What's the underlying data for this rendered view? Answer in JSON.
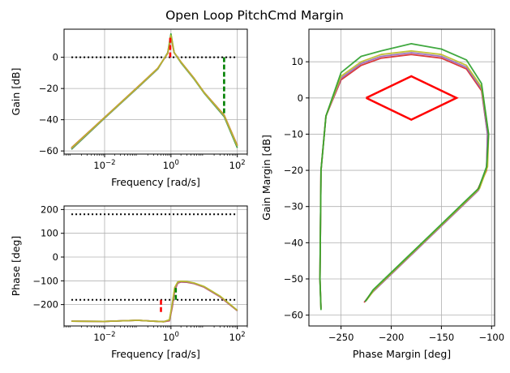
{
  "figure_title": "Open Loop PitchCmd Margin",
  "colors": {
    "c1": "#d62728",
    "c2": "#9467bd",
    "c3": "#2ca02c",
    "c4": "#bcbd22",
    "c5": "#e377c2",
    "ref_line": "#000000",
    "gain_margin_marker": "#008000",
    "phase_margin_marker": "#ff0000",
    "grid": "#b0b0b0"
  },
  "chart_data": [
    {
      "type": "line",
      "name": "gain",
      "xscale": "log",
      "xlabel": "Frequency [rad/s]",
      "ylabel": "Gain [dB]",
      "xlim": [
        0.0006,
        200
      ],
      "ylim": [
        -62,
        18
      ],
      "xticks": [
        {
          "v": 0.01,
          "base": "10",
          "exp": "−2"
        },
        {
          "v": 1,
          "base": "10",
          "exp": "0"
        },
        {
          "v": 100,
          "base": "10",
          "exp": "2"
        }
      ],
      "yticks": [
        -60,
        -40,
        -20,
        0
      ],
      "ytick_labels": [
        "−60",
        "−40",
        "−20",
        "0"
      ],
      "grid": true,
      "reference_lines": [
        {
          "x0": 0.001,
          "x1": 100,
          "y": 0,
          "style": "dotted"
        }
      ],
      "series": [
        {
          "color": "c3",
          "x": [
            0.001,
            0.01,
            0.1,
            0.4,
            0.8,
            1.0,
            1.25,
            2,
            5,
            10,
            40,
            100
          ],
          "y": [
            -59,
            -39,
            -19.5,
            -7.5,
            3,
            15,
            3,
            -3.5,
            -14,
            -23,
            -38,
            -58
          ]
        },
        {
          "color": "c1",
          "x": [
            0.001,
            0.01,
            0.1,
            0.4,
            0.8,
            1.0,
            1.25,
            2,
            5,
            10,
            40,
            100
          ],
          "y": [
            -58,
            -38.5,
            -19,
            -7,
            2.5,
            13,
            3,
            -3,
            -13.5,
            -22.5,
            -37,
            -56.5
          ]
        },
        {
          "color": "c2",
          "x": [
            0.001,
            0.01,
            0.1,
            0.4,
            0.8,
            1.0,
            1.25,
            2,
            5,
            10,
            40,
            100
          ],
          "y": [
            -58.5,
            -38.8,
            -19.3,
            -7.3,
            2.7,
            13.5,
            3,
            -3.2,
            -13.7,
            -22.7,
            -37.5,
            -57
          ]
        },
        {
          "color": "c4",
          "x": [
            0.001,
            0.01,
            0.1,
            0.4,
            0.8,
            1.0,
            1.25,
            2,
            5,
            10,
            40,
            100
          ],
          "y": [
            -58.2,
            -38.6,
            -19.1,
            -7.1,
            2.6,
            14,
            3,
            -3.1,
            -13.6,
            -22.6,
            -37.2,
            -56.8
          ]
        }
      ],
      "margin_markers": [
        {
          "kind": "phase_crossover",
          "color": "gain_margin_marker",
          "x": 40,
          "y0": 0,
          "y1": -37
        },
        {
          "kind": "gain_crossover",
          "color": "phase_margin_marker",
          "x": 0.95,
          "y0": 0,
          "y1": 13
        }
      ]
    },
    {
      "type": "line",
      "name": "phase",
      "xscale": "log",
      "xlabel": "Frequency [rad/s]",
      "ylabel": "Phase [deg]",
      "xlim": [
        0.0006,
        200
      ],
      "ylim": [
        -290,
        215
      ],
      "xticks": [
        {
          "v": 0.01,
          "base": "10",
          "exp": "−2"
        },
        {
          "v": 1,
          "base": "10",
          "exp": "0"
        },
        {
          "v": 100,
          "base": "10",
          "exp": "2"
        }
      ],
      "yticks": [
        -200,
        -100,
        0,
        100,
        200
      ],
      "ytick_labels": [
        "−200",
        "−100",
        "0",
        "100",
        "200"
      ],
      "grid": true,
      "reference_lines": [
        {
          "x0": 0.001,
          "x1": 100,
          "y": 180,
          "style": "dotted"
        },
        {
          "x0": 0.001,
          "x1": 100,
          "y": -180,
          "style": "dotted"
        }
      ],
      "series": [
        {
          "color": "c3",
          "x": [
            0.001,
            0.01,
            0.1,
            0.3,
            0.6,
            0.9,
            1.1,
            1.3,
            1.6,
            2,
            3,
            5,
            10,
            30,
            100
          ],
          "y": [
            -270,
            -271,
            -266,
            -270,
            -272,
            -265,
            -200,
            -130,
            -106,
            -103,
            -104,
            -110,
            -125,
            -165,
            -225
          ]
        },
        {
          "color": "c1",
          "x": [
            0.001,
            0.01,
            0.1,
            0.3,
            0.6,
            0.9,
            1.1,
            1.3,
            1.6,
            2,
            3,
            5,
            10,
            30,
            100
          ],
          "y": [
            -270,
            -271,
            -266,
            -270,
            -272,
            -268,
            -210,
            -140,
            -110,
            -105,
            -106,
            -112,
            -127,
            -167,
            -226
          ]
        },
        {
          "color": "c2",
          "x": [
            0.001,
            0.01,
            0.1,
            0.3,
            0.6,
            0.9,
            1.1,
            1.3,
            1.6,
            2,
            3,
            5,
            10,
            30,
            100
          ],
          "y": [
            -270,
            -271,
            -266,
            -270,
            -272,
            -266,
            -205,
            -135,
            -108,
            -104,
            -105,
            -111,
            -126,
            -166,
            -225
          ]
        },
        {
          "color": "c4",
          "x": [
            0.001,
            0.01,
            0.1,
            0.3,
            0.6,
            0.9,
            1.1,
            1.3,
            1.6,
            2,
            3,
            5,
            10,
            30,
            100
          ],
          "y": [
            -270,
            -271,
            -266,
            -270,
            -272,
            -264,
            -195,
            -128,
            -105,
            -102,
            -103,
            -109,
            -124,
            -164,
            -224
          ]
        }
      ],
      "margin_markers": [
        {
          "kind": "phase_margin",
          "color": "phase_margin_marker",
          "x": 0.5,
          "y0": -180,
          "y1": -240
        },
        {
          "kind": "phase_margin",
          "color": "gain_margin_marker",
          "x": 1.4,
          "y0": -180,
          "y1": -130
        }
      ]
    },
    {
      "type": "line",
      "name": "nichols",
      "xlabel": "Phase Margin [deg]",
      "ylabel": "Gain Margin [dB]",
      "xlim": [
        -282,
        -97
      ],
      "ylim": [
        -63,
        19
      ],
      "xticks": [
        -250,
        -200,
        -150,
        -100
      ],
      "xtick_labels": [
        "−250",
        "−200",
        "−150",
        "−100"
      ],
      "yticks": [
        -60,
        -50,
        -40,
        -30,
        -20,
        -10,
        0,
        10
      ],
      "ytick_labels": [
        "−60",
        "−50",
        "−40",
        "−30",
        "−20",
        "−10",
        "0",
        "10"
      ],
      "grid": true,
      "exclusion_region": {
        "color": "phase_margin_marker",
        "x": [
          -225,
          -180,
          -135,
          -180,
          -225
        ],
        "y": [
          0,
          6,
          0,
          -6,
          0
        ]
      },
      "series": [
        {
          "color": "c1",
          "x": [
            -270,
            -271,
            -270,
            -265,
            -250,
            -230,
            -210,
            -180,
            -150,
            -125,
            -110,
            -104,
            -105,
            -115,
            -130,
            -160,
            -190,
            -220,
            -227
          ],
          "y": [
            -58,
            -50,
            -20,
            -5,
            5,
            9,
            11,
            12,
            11,
            8,
            2,
            -10,
            -20,
            -26,
            -30,
            -38,
            -46,
            -54,
            -56.5
          ]
        },
        {
          "color": "c2",
          "x": [
            -270,
            -271,
            -270,
            -265,
            -250,
            -230,
            -210,
            -180,
            -150,
            -125,
            -110,
            -104,
            -105,
            -113,
            -128,
            -158,
            -188,
            -218,
            -226
          ],
          "y": [
            -58.2,
            -50,
            -20,
            -5,
            5.5,
            9.5,
            11.5,
            12.5,
            11.5,
            8.5,
            2.5,
            -10,
            -19.5,
            -25.5,
            -29.5,
            -37.5,
            -45.5,
            -53.5,
            -56.2
          ]
        },
        {
          "color": "c4",
          "x": [
            -270,
            -271,
            -270,
            -265,
            -250,
            -230,
            -210,
            -180,
            -150,
            -125,
            -110,
            -103,
            -104,
            -112,
            -127,
            -157,
            -187,
            -217,
            -225
          ],
          "y": [
            -58.4,
            -50,
            -20,
            -5,
            6,
            10,
            12,
            13,
            12,
            9,
            3,
            -10,
            -19,
            -25,
            -29,
            -37,
            -45,
            -53,
            -56
          ]
        },
        {
          "color": "c3",
          "x": [
            -270,
            -271,
            -270,
            -265,
            -250,
            -230,
            -210,
            -180,
            -150,
            -125,
            -110,
            -103,
            -105,
            -113,
            -128,
            -158,
            -188,
            -218,
            -226
          ],
          "y": [
            -58.6,
            -50,
            -20,
            -5,
            7,
            11.5,
            13,
            15,
            13.5,
            10.5,
            4,
            -10,
            -19,
            -25,
            -29,
            -37,
            -45,
            -53,
            -56.3
          ]
        }
      ]
    }
  ]
}
